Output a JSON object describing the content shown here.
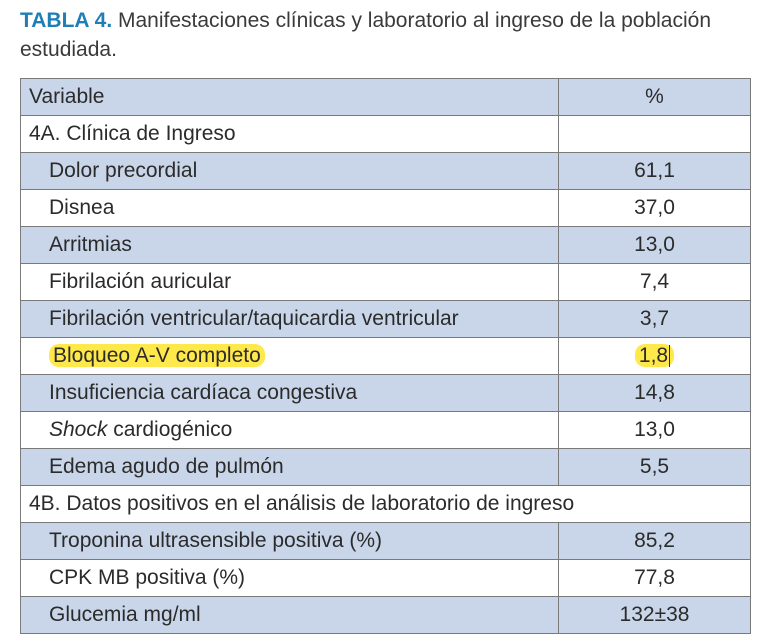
{
  "caption": {
    "label": "TABLA 4.",
    "text": " Manifestaciones clínicas y laboratorio al ingreso de la población estudiada."
  },
  "table": {
    "header": {
      "variable": "Variable",
      "percent": "%"
    },
    "section_a": "4A. Clínica de Ingreso",
    "rows_a": [
      {
        "label": "Dolor precordial",
        "value": "61,1"
      },
      {
        "label": "Disnea",
        "value": "37,0"
      },
      {
        "label": "Arritmias",
        "value": "13,0"
      },
      {
        "label": "Fibrilación auricular",
        "value": "7,4"
      },
      {
        "label": "Fibrilación ventricular/taquicardia ventricular",
        "value": "3,7"
      },
      {
        "label": "Bloqueo A-V completo",
        "value": "1,8"
      },
      {
        "label": "Insuficiencia cardíaca congestiva",
        "value": "14,8"
      },
      {
        "label_italic": "Shock",
        "label_rest": " cardiogénico",
        "value": "13,0"
      },
      {
        "label": "Edema agudo de pulmón",
        "value": "5,5"
      }
    ],
    "section_b": "4B. Datos positivos en el análisis de laboratorio de ingreso",
    "rows_b": [
      {
        "label": "Troponina ultrasensible positiva (%)",
        "value": "85,2"
      },
      {
        "label": "CPK MB positiva (%)",
        "value": "77,8"
      },
      {
        "label": "Glucemia mg/ml",
        "value": "132±38"
      }
    ]
  },
  "colors": {
    "caption_label": "#1f7fb5",
    "row_shade": "#c9d6ea",
    "highlight": "#ffe94a"
  }
}
